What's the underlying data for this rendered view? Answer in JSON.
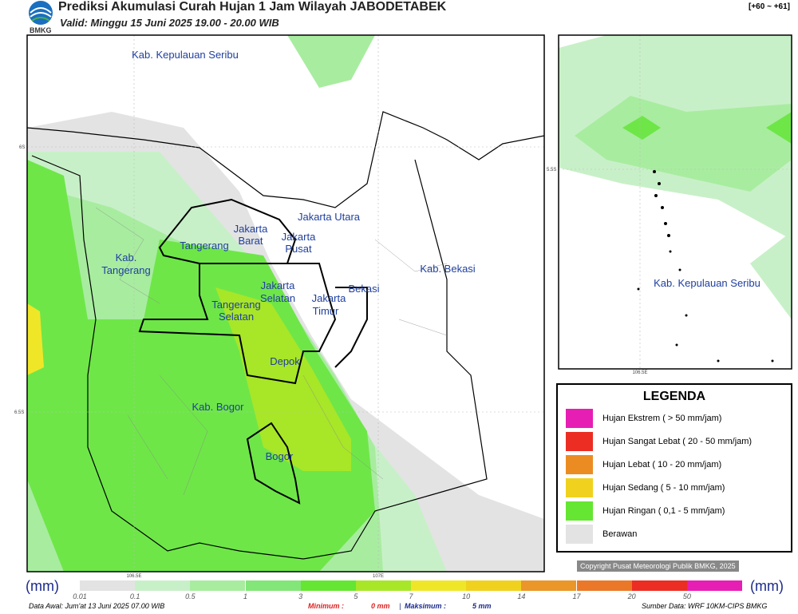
{
  "header": {
    "title": "Prediksi Akumulasi Curah Hujan 1 Jam Wilayah JABODETABEK",
    "subtitle": "Valid: Minggu 15 Juni 2025 19.00 - 20.00 WIB",
    "logo": "BMKG",
    "range": "[+60 ~ +61]"
  },
  "map": {
    "labels": [
      "Kab. Kepulauan Seribu",
      "Jakarta Utara",
      "Jakarta",
      "Barat",
      "Jakarta",
      "Pusat",
      "Tangerang",
      "Kab.",
      "Tangerang",
      "Jakarta",
      "Selatan",
      "Tangerang",
      "Selatan",
      "Jakarta",
      "Timur",
      "Bekasi",
      "Kab. Bekasi",
      "Depok",
      "Kab. Bogor",
      "Bogor"
    ],
    "lat_labels": [
      "6S",
      "6.5S"
    ],
    "lon_labels": [
      "106.5E",
      "107E"
    ]
  },
  "inset": {
    "label": "Kab. Kepulauan Seribu",
    "lat_label": "5.5S",
    "lon_label": "106.5E"
  },
  "legend": {
    "title": "LEGENDA",
    "items": [
      "Hujan Ekstrem ( > 50 mm/jam)",
      "Hujan Sangat Lebat ( 20 - 50 mm/jam)",
      "Hujan Lebat ( 10 - 20 mm/jam)",
      "Hujan Sedang ( 5 - 10 mm/jam)",
      "Hujan Ringan ( 0,1 - 5 mm/jam)",
      "Berawan"
    ]
  },
  "copyright": "Copyright Pusat Meteorologi Publik BMKG, 2025",
  "colorbar": {
    "unit": "(mm)",
    "ticks": [
      "0.01",
      "0.1",
      "0.5",
      "1",
      "3",
      "5",
      "7",
      "10",
      "14",
      "17",
      "20",
      "50"
    ]
  },
  "footer": {
    "data_awal": "Data Awal: Jum'at 13 Juni 2025 07.00 WIB",
    "min_label": "Minimum :",
    "min_value": "0 mm",
    "separator": "|",
    "max_label": "Maksimum :",
    "max_value": "5 mm",
    "source": "Sumber Data: WRF 10KM-CIPS BMKG"
  }
}
